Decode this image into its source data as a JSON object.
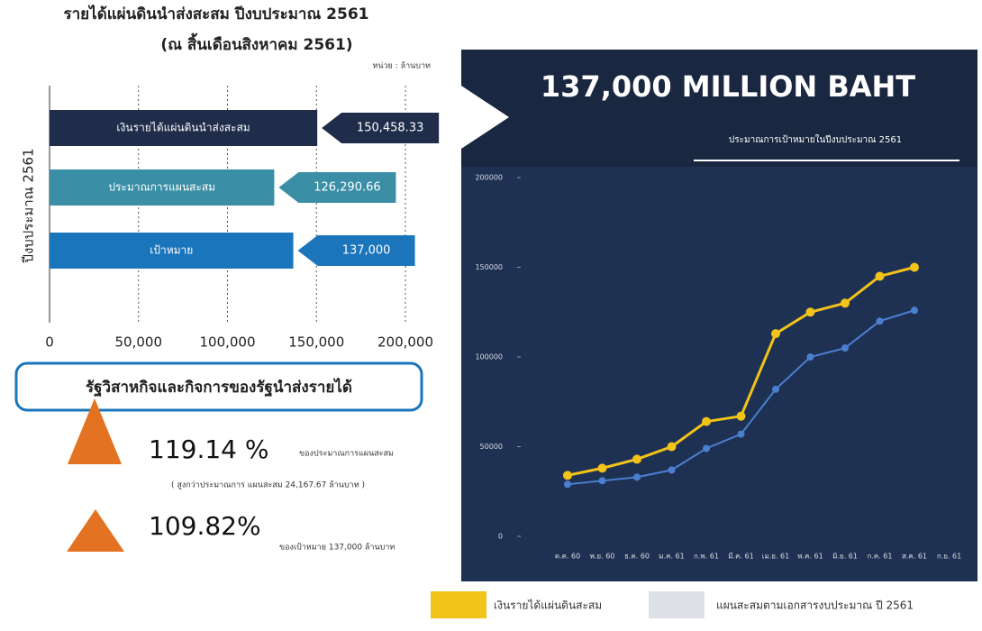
{
  "chart_data": [
    {
      "type": "barh",
      "title": "รายได้แผ่นดินนำส่งสะสม ปีงบประมาณ 2561",
      "subtitle": "(ณ สิ้นเดือนสิงหาคม 2561)",
      "unit": "หน่วย : ล้านบาท",
      "y_label": "ปีงบประมาณ 2561",
      "categories": [
        "เงินรายได้แผ่นดินนำส่งสะสม",
        "ประมาณการแผนสะสม",
        "เป้าหมาย"
      ],
      "values": [
        150458.33,
        126290.66,
        137000
      ],
      "value_labels": [
        "150,458.33",
        "126,290.66",
        "137,000"
      ],
      "colors": [
        "#1f2d4a",
        "#3a8ea5",
        "#1b75bb"
      ],
      "xlim": [
        0,
        200000
      ],
      "xticks": [
        0,
        {
          "value": 50000,
          "label": "50,000"
        },
        {
          "value": 100000,
          "label": "100,000"
        },
        {
          "value": 150000,
          "label": "150,000"
        },
        {
          "value": 200000,
          "label": "200,000"
        }
      ],
      "grid": true
    },
    {
      "type": "line",
      "title": "137,000 MILLION BAHT",
      "subtitle": "ประมาณการเป้าหมายในปีงบประมาณ 2561",
      "categories": [
        "ต.ค. 60",
        "พ.ย. 60",
        "ธ.ค. 60",
        "ม.ค. 61",
        "ก.พ. 61",
        "มี.ค. 61",
        "เม.ย. 61",
        "พ.ค. 61",
        "มิ.ย. 61",
        "ก.ค. 61",
        "ส.ค. 61",
        "ก.ย. 61"
      ],
      "series": [
        {
          "name": "เงินรายได้แผ่นดินสะสม",
          "color": "#f2c318",
          "values": [
            34000,
            38000,
            43000,
            50000,
            64000,
            67000,
            113000,
            125000,
            130000,
            145000,
            150000,
            null
          ]
        },
        {
          "name": "แผนสะสมตามเอกสารงบประมาณ ปี 2561",
          "color": "#4a7fd0",
          "values": [
            29000,
            31000,
            33000,
            37000,
            49000,
            57000,
            82000,
            100000,
            105000,
            120000,
            126000,
            null
          ]
        }
      ],
      "ylim": [
        0,
        200000
      ],
      "yticks": [
        0,
        50000,
        100000,
        150000,
        200000
      ]
    }
  ],
  "stats": {
    "heading": "รัฐวิสาหกิจและกิจการของรัฐนำส่งรายได้",
    "items": [
      {
        "value": "119.14 %",
        "text": "ของประมาณการแผนสะสม",
        "note": "( สูงกว่าประมาณการ แผนสะสม 24,167.67 ล้านบาท )"
      },
      {
        "value": "109.82%",
        "text": "ของเป้าหมาย 137,000 ล้านบาท"
      }
    ]
  }
}
